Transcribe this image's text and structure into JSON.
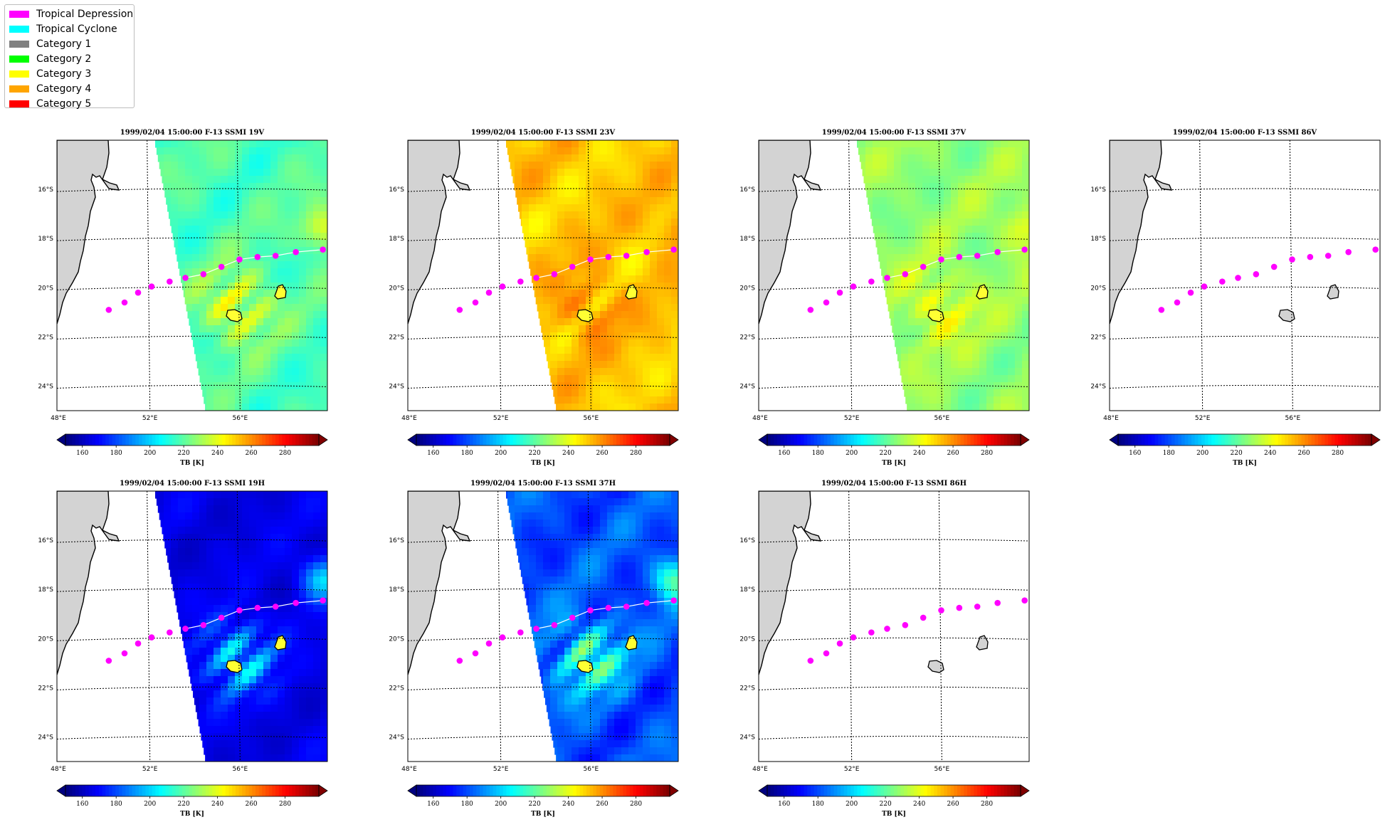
{
  "legend": {
    "items": [
      {
        "label": "Tropical Depression",
        "color": "#ff00ff"
      },
      {
        "label": "Tropical Cyclone",
        "color": "#00ffff"
      },
      {
        "label": "Category 1",
        "color": "#808080"
      },
      {
        "label": "Category 2",
        "color": "#00ff00"
      },
      {
        "label": "Category 3",
        "color": "#ffff00"
      },
      {
        "label": "Category 4",
        "color": "#ffa500"
      },
      {
        "label": "Category 5",
        "color": "#ff0000"
      }
    ]
  },
  "chart_data": [
    {
      "type": "heatmap",
      "title": "1999/02/04 15:00:00  F-13 SSMI 19V",
      "field": "tb19v",
      "swath": true,
      "colorbar": {
        "label": "TB [K]",
        "ticks": [
          160,
          180,
          200,
          220,
          240,
          260,
          280
        ],
        "range": [
          150,
          300
        ]
      }
    },
    {
      "type": "heatmap",
      "title": "1999/02/04 15:00:00  F-13 SSMI 23V",
      "field": "tb23v",
      "swath": true,
      "colorbar": {
        "label": "TB [K]",
        "ticks": [
          160,
          180,
          200,
          220,
          240,
          260,
          280
        ],
        "range": [
          150,
          300
        ]
      }
    },
    {
      "type": "heatmap",
      "title": "1999/02/04 15:00:00  F-13 SSMI 37V",
      "field": "tb37v",
      "swath": true,
      "colorbar": {
        "label": "TB [K]",
        "ticks": [
          160,
          180,
          200,
          220,
          240,
          260,
          280
        ],
        "range": [
          150,
          300
        ]
      }
    },
    {
      "type": "heatmap",
      "title": "1999/02/04 15:00:00  F-13 SSMI 86V",
      "field": "none",
      "swath": false,
      "colorbar": {
        "label": "TB [K]",
        "ticks": [
          160,
          180,
          200,
          220,
          240,
          260,
          280
        ],
        "range": [
          150,
          300
        ]
      }
    },
    {
      "type": "heatmap",
      "title": "1999/02/04 15:00:00  F-13 SSMI 19H",
      "field": "tb19h",
      "swath": true,
      "colorbar": {
        "label": "TB [K]",
        "ticks": [
          160,
          180,
          200,
          220,
          240,
          260,
          280
        ],
        "range": [
          150,
          300
        ]
      }
    },
    {
      "type": "heatmap",
      "title": "1999/02/04 15:00:00  F-13 SSMI 37H",
      "field": "tb37h",
      "swath": true,
      "colorbar": {
        "label": "TB [K]",
        "ticks": [
          160,
          180,
          200,
          220,
          240,
          260,
          280
        ],
        "range": [
          150,
          300
        ]
      }
    },
    {
      "type": "heatmap",
      "title": "1999/02/04 15:00:00  F-13 SSMI 86H",
      "field": "none",
      "swath": false,
      "colorbar": {
        "label": "TB [K]",
        "ticks": [
          160,
          180,
          200,
          220,
          240,
          260,
          280
        ],
        "range": [
          150,
          300
        ]
      }
    }
  ],
  "map": {
    "lon_range": [
      48,
      60
    ],
    "lat_range": [
      -25,
      -14
    ],
    "lon_ticks": [
      {
        "value": 48,
        "label": "48°E"
      },
      {
        "value": 52,
        "label": "52°E"
      },
      {
        "value": 56,
        "label": "56°E"
      }
    ],
    "lat_ticks": [
      {
        "value": -16,
        "label": "16°S"
      },
      {
        "value": -18,
        "label": "18°S"
      },
      {
        "value": -20,
        "label": "20°S"
      },
      {
        "value": -22,
        "label": "22°S"
      },
      {
        "value": -24,
        "label": "24°S"
      }
    ],
    "land_color": "#d3d3d3",
    "grid": true,
    "track": {
      "category": "Tropical Depression",
      "color": "#ff00ff",
      "points": [
        {
          "lon": 50.3,
          "lat": -20.9
        },
        {
          "lon": 51.0,
          "lat": -20.6
        },
        {
          "lon": 51.6,
          "lat": -20.2
        },
        {
          "lon": 52.2,
          "lat": -19.95
        },
        {
          "lon": 53.0,
          "lat": -19.75
        },
        {
          "lon": 53.7,
          "lat": -19.6
        },
        {
          "lon": 54.5,
          "lat": -19.45
        },
        {
          "lon": 55.3,
          "lat": -19.15
        },
        {
          "lon": 56.1,
          "lat": -18.85
        },
        {
          "lon": 56.9,
          "lat": -18.75
        },
        {
          "lon": 57.7,
          "lat": -18.7
        },
        {
          "lon": 58.6,
          "lat": -18.55
        },
        {
          "lon": 59.8,
          "lat": -18.45
        }
      ]
    }
  }
}
